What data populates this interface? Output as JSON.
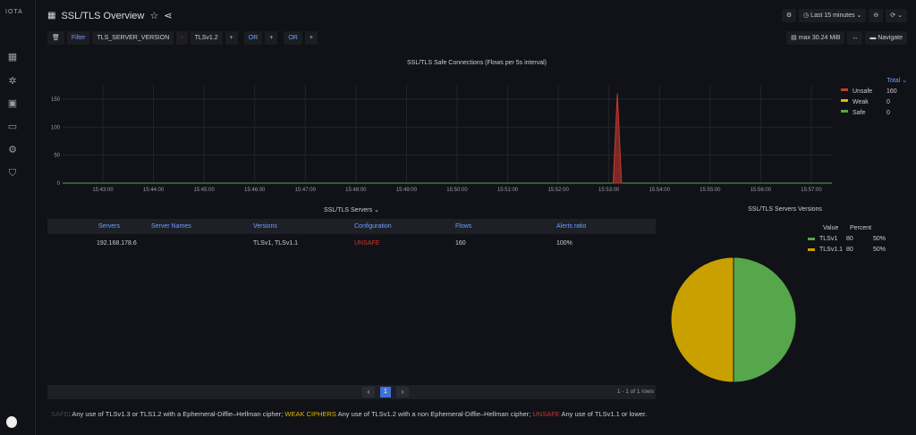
{
  "app": {
    "logo": "IOTA"
  },
  "header": {
    "title": "SSL/TLS Overview",
    "time_range": "Last 15 minutes"
  },
  "filters": {
    "filter_label": "Filter",
    "key": "TLS_SERVER_VERSION",
    "operator": "-",
    "value": "TLSv1.2",
    "or1": "OR",
    "or2": "OR",
    "add": "+"
  },
  "toolbar": {
    "max_label": "max 30.24 MiB",
    "navigate_label": "Navigate"
  },
  "timeseries": {
    "chart_data": {
      "type": "line",
      "title": "SSL/TLS Safe Connections (Flows per 5s interval)",
      "y_ticks": [
        "0",
        "50",
        "100",
        "150"
      ],
      "ylim": [
        0,
        170
      ],
      "x_ticks": [
        "15:43:00",
        "15:44:00",
        "15:45:00",
        "15:46:00",
        "15:47:00",
        "15:48:00",
        "15:49:00",
        "15:50:00",
        "15:51:00",
        "15:52:00",
        "15:53:00",
        "15:54:00",
        "15:55:00",
        "15:56:00",
        "15:57:00"
      ],
      "legend_header": "Total",
      "series": [
        {
          "name": "Unsafe",
          "total": "160",
          "color": "#c4392f",
          "points": [
            [
              "15:53:05",
              0
            ],
            [
              "15:53:10",
              160
            ],
            [
              "15:53:15",
              0
            ]
          ]
        },
        {
          "name": "Weak",
          "total": "0",
          "color": "#e0b400",
          "points": []
        },
        {
          "name": "Safe",
          "total": "0",
          "color": "#56a64b",
          "points": []
        }
      ]
    }
  },
  "servers": {
    "title": "SSL/TLS Servers",
    "columns": [
      "Servers",
      "Server Names",
      "Versions",
      "Configuration",
      "Flows",
      "Alerts ratio"
    ],
    "rows": [
      [
        "192.168.178.6",
        "",
        "TLSv1, TLSv1.1",
        "UNSAFE",
        "160",
        "100%"
      ]
    ],
    "page": "1",
    "rows_info": "1 - 1 of 1 rows"
  },
  "versions": {
    "chart_data": {
      "type": "pie",
      "title": "SSL/TLS Servers Versions",
      "columns": [
        "Value",
        "Percent"
      ],
      "slices": [
        {
          "name": "TLSv1",
          "value": 80,
          "percent": "50%",
          "color": "#56a64b"
        },
        {
          "name": "TLSv1.1",
          "value": 80,
          "percent": "50%",
          "color": "#c9a000"
        }
      ]
    }
  },
  "footer": {
    "safe": "SAFE",
    "safe_text": ": Any use of TLSv1.3 or TLS1.2 with a Ephemeral-Diffie–Hellman cipher;",
    "weak": "WEAK CIPHERS",
    "weak_text": " Any use of TLSv1.2 with a non Ephemeral-Diffie–Hellman cipher;",
    "unsafe": "UNSAFE",
    "unsafe_text": " Any use of TLSv1.1 or lower."
  }
}
